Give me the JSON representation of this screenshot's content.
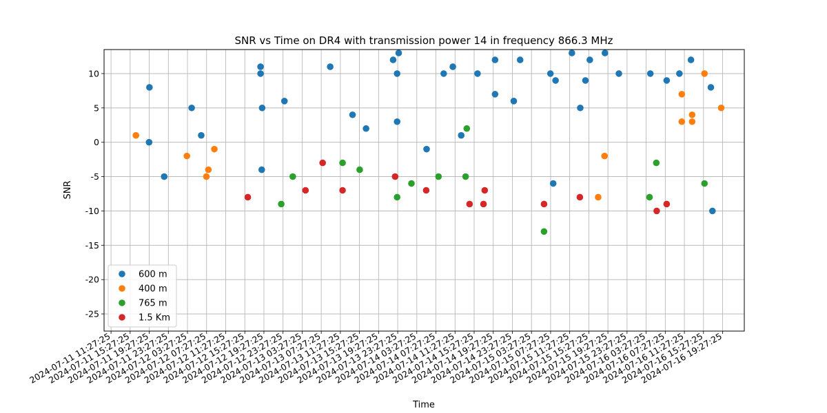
{
  "chart_data": {
    "type": "scatter",
    "title": "SNR vs Time on DR4 with transmission power 14 in frequency 866.3 MHz",
    "xlabel": "Time",
    "ylabel": "SNR",
    "xlim": [
      "2024-07-11 10:00",
      "2024-07-17 00:00"
    ],
    "ylim": [
      -27.5,
      13.5
    ],
    "x_ticks": [
      "2024-07-11 11:27:25",
      "2024-07-11 15:27:25",
      "2024-07-11 19:27:25",
      "2024-07-11 23:27:25",
      "2024-07-12 03:27:25",
      "2024-07-12 07:27:25",
      "2024-07-12 11:27:25",
      "2024-07-12 15:27:25",
      "2024-07-12 19:27:25",
      "2024-07-12 23:27:25",
      "2024-07-13 03:27:25",
      "2024-07-13 07:27:25",
      "2024-07-13 11:27:25",
      "2024-07-13 15:27:25",
      "2024-07-13 19:27:25",
      "2024-07-13 23:27:25",
      "2024-07-14 03:27:25",
      "2024-07-14 07:27:25",
      "2024-07-14 11:27:25",
      "2024-07-14 15:27:25",
      "2024-07-14 19:27:25",
      "2024-07-14 23:27:25",
      "2024-07-15 03:27:25",
      "2024-07-15 07:27:25",
      "2024-07-15 11:27:25",
      "2024-07-15 15:27:25",
      "2024-07-15 19:27:25",
      "2024-07-15 23:27:25",
      "2024-07-16 03:27:25",
      "2024-07-16 07:27:25",
      "2024-07-16 11:27:25",
      "2024-07-16 15:27:25",
      "2024-07-16 19:27:25"
    ],
    "y_ticks": [
      -25,
      -20,
      -15,
      -10,
      -5,
      0,
      5,
      10
    ],
    "grid": true,
    "legend_position": "lower-left",
    "series": [
      {
        "name": "600 m",
        "color": "#1f77b4",
        "points": [
          {
            "x": "2024-07-11 19:30",
            "y": 8
          },
          {
            "x": "2024-07-11 19:25",
            "y": 0
          },
          {
            "x": "2024-07-11 22:35",
            "y": -5
          },
          {
            "x": "2024-07-12 04:20",
            "y": 5
          },
          {
            "x": "2024-07-12 06:20",
            "y": 1
          },
          {
            "x": "2024-07-12 18:45",
            "y": 11
          },
          {
            "x": "2024-07-12 18:45",
            "y": 10
          },
          {
            "x": "2024-07-12 19:05",
            "y": 5
          },
          {
            "x": "2024-07-12 19:00",
            "y": -4
          },
          {
            "x": "2024-07-12 23:45",
            "y": 6
          },
          {
            "x": "2024-07-13 09:20",
            "y": 11
          },
          {
            "x": "2024-07-13 14:00",
            "y": 4
          },
          {
            "x": "2024-07-13 16:50",
            "y": 2
          },
          {
            "x": "2024-07-13 22:30",
            "y": 12
          },
          {
            "x": "2024-07-13 23:40",
            "y": 13
          },
          {
            "x": "2024-07-13 23:20",
            "y": 10
          },
          {
            "x": "2024-07-13 23:20",
            "y": 3
          },
          {
            "x": "2024-07-14 05:30",
            "y": -1
          },
          {
            "x": "2024-07-14 09:05",
            "y": 10
          },
          {
            "x": "2024-07-14 11:00",
            "y": 11
          },
          {
            "x": "2024-07-14 12:45",
            "y": 1
          },
          {
            "x": "2024-07-14 16:10",
            "y": 10
          },
          {
            "x": "2024-07-14 19:50",
            "y": 12
          },
          {
            "x": "2024-07-14 19:50",
            "y": 7
          },
          {
            "x": "2024-07-14 23:45",
            "y": 6
          },
          {
            "x": "2024-07-15 01:05",
            "y": 12
          },
          {
            "x": "2024-07-15 07:25",
            "y": 10
          },
          {
            "x": "2024-07-15 08:30",
            "y": 9
          },
          {
            "x": "2024-07-15 08:00",
            "y": -6
          },
          {
            "x": "2024-07-15 11:55",
            "y": 13
          },
          {
            "x": "2024-07-15 13:40",
            "y": 5
          },
          {
            "x": "2024-07-15 14:45",
            "y": 9
          },
          {
            "x": "2024-07-15 15:40",
            "y": 12
          },
          {
            "x": "2024-07-15 18:50",
            "y": 13
          },
          {
            "x": "2024-07-15 21:45",
            "y": 10
          },
          {
            "x": "2024-07-16 04:20",
            "y": 10
          },
          {
            "x": "2024-07-16 07:45",
            "y": 9
          },
          {
            "x": "2024-07-16 10:25",
            "y": 10
          },
          {
            "x": "2024-07-16 12:50",
            "y": 12
          },
          {
            "x": "2024-07-16 17:00",
            "y": 8
          },
          {
            "x": "2024-07-16 17:20",
            "y": -10
          }
        ]
      },
      {
        "name": "400 m",
        "color": "#ff7f0e",
        "points": [
          {
            "x": "2024-07-11 16:40",
            "y": 1
          },
          {
            "x": "2024-07-12 03:20",
            "y": -2
          },
          {
            "x": "2024-07-12 07:25",
            "y": -5
          },
          {
            "x": "2024-07-12 07:50",
            "y": -4
          },
          {
            "x": "2024-07-12 09:05",
            "y": -1
          },
          {
            "x": "2024-07-16 10:55",
            "y": 7
          },
          {
            "x": "2024-07-16 10:55",
            "y": 3
          },
          {
            "x": "2024-07-16 13:05",
            "y": 4
          },
          {
            "x": "2024-07-16 13:05",
            "y": 3
          },
          {
            "x": "2024-07-16 15:40",
            "y": 10
          },
          {
            "x": "2024-07-16 19:10",
            "y": 5
          },
          {
            "x": "2024-07-15 17:25",
            "y": -8
          },
          {
            "x": "2024-07-15 18:45",
            "y": -2
          }
        ]
      },
      {
        "name": "765 m",
        "color": "#2ca02c",
        "points": [
          {
            "x": "2024-07-12 23:05",
            "y": -9
          },
          {
            "x": "2024-07-13 01:30",
            "y": -5
          },
          {
            "x": "2024-07-13 11:55",
            "y": -3
          },
          {
            "x": "2024-07-13 15:30",
            "y": -4
          },
          {
            "x": "2024-07-13 23:20",
            "y": -8
          },
          {
            "x": "2024-07-14 02:20",
            "y": -6
          },
          {
            "x": "2024-07-14 08:00",
            "y": -5
          },
          {
            "x": "2024-07-14 13:40",
            "y": -5
          },
          {
            "x": "2024-07-14 13:55",
            "y": 2
          },
          {
            "x": "2024-07-15 06:05",
            "y": -13
          },
          {
            "x": "2024-07-16 04:10",
            "y": -8
          },
          {
            "x": "2024-07-16 05:35",
            "y": -3
          },
          {
            "x": "2024-07-16 15:40",
            "y": -6
          }
        ]
      },
      {
        "name": "1.5 Km",
        "color": "#d62728",
        "points": [
          {
            "x": "2024-07-12 16:05",
            "y": -8
          },
          {
            "x": "2024-07-13 04:10",
            "y": -7
          },
          {
            "x": "2024-07-13 07:45",
            "y": -3
          },
          {
            "x": "2024-07-13 11:55",
            "y": -7
          },
          {
            "x": "2024-07-13 22:55",
            "y": -5
          },
          {
            "x": "2024-07-14 05:25",
            "y": -7
          },
          {
            "x": "2024-07-14 14:30",
            "y": -9
          },
          {
            "x": "2024-07-14 17:25",
            "y": -9
          },
          {
            "x": "2024-07-14 17:40",
            "y": -7
          },
          {
            "x": "2024-07-15 06:05",
            "y": -9
          },
          {
            "x": "2024-07-15 13:35",
            "y": -8
          },
          {
            "x": "2024-07-16 05:40",
            "y": -10
          },
          {
            "x": "2024-07-16 07:45",
            "y": -9
          }
        ]
      }
    ]
  }
}
